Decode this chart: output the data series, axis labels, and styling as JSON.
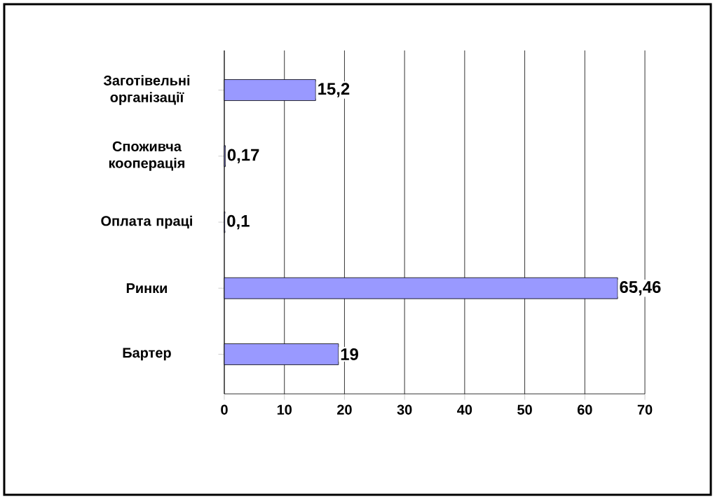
{
  "chart_data": {
    "type": "bar",
    "orientation": "horizontal",
    "categories": [
      "Заготівельні організації",
      "Споживча кооперація",
      "Оплата праці",
      "Ринки",
      "Бартер"
    ],
    "values": [
      15.2,
      0.17,
      0.1,
      65.46,
      19
    ],
    "value_labels": [
      "15,2",
      "0,17",
      "0,1",
      "65,46",
      "19"
    ],
    "color": "#9999ff",
    "xlim": [
      0,
      70
    ],
    "xticks": [
      0,
      10,
      20,
      30,
      40,
      50,
      60,
      70
    ],
    "grid": "x"
  }
}
